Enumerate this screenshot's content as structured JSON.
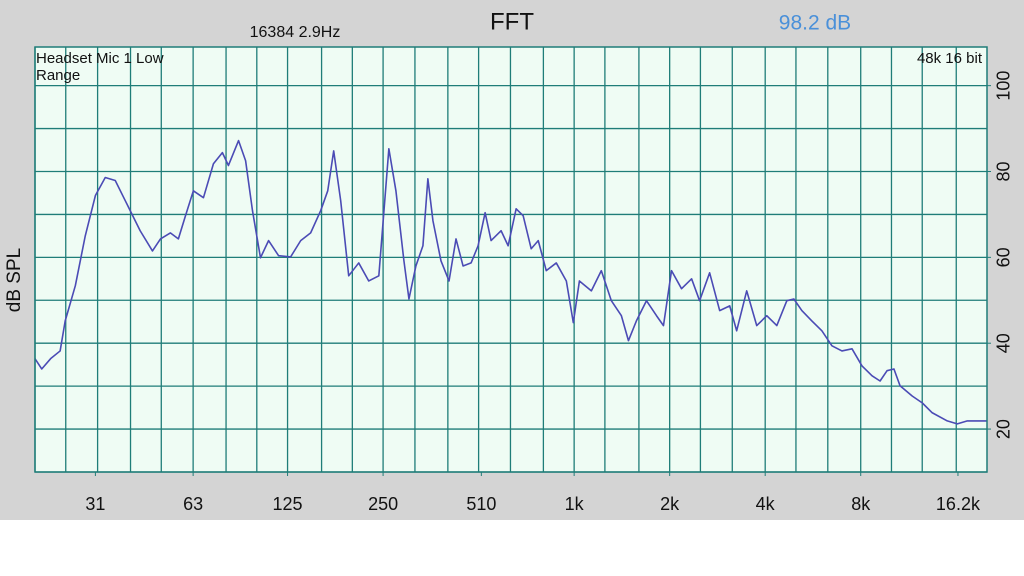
{
  "chart_data": {
    "type": "line",
    "title": "FFT",
    "subtitle": "16384  2.9Hz",
    "readout": "98.2 dB",
    "device_label": "Headset Mic 1 Low Range",
    "format_label": "48k 16 bit",
    "ylabel": "dB SPL",
    "xscale": "log",
    "xlim": [
      20,
      20000
    ],
    "ylim": [
      10,
      109
    ],
    "xticks": [
      31,
      63,
      125,
      250,
      510,
      {
        "value": 1000,
        "label": "1k"
      },
      {
        "value": 2000,
        "label": "2k"
      },
      {
        "value": 4000,
        "label": "4k"
      },
      {
        "value": 8000,
        "label": "8k"
      },
      {
        "value": 16200,
        "label": "16.2k"
      }
    ],
    "x_grid": [
      20,
      25,
      31.5,
      40,
      50,
      63,
      80,
      100,
      125,
      160,
      200,
      250,
      315,
      400,
      500,
      630,
      800,
      1000,
      1250,
      1600,
      2000,
      2500,
      3150,
      4000,
      5000,
      6300,
      8000,
      10000,
      12500,
      16000
    ],
    "yticks": [
      20,
      40,
      60,
      80,
      100
    ],
    "y_grid": [
      10,
      20,
      30,
      40,
      50,
      60,
      70,
      80,
      90,
      100
    ],
    "grid": true,
    "color": "#4b4bb5",
    "x": [
      20,
      21,
      22.4,
      24,
      24.9,
      26.8,
      28.8,
      31,
      33.3,
      35.8,
      38.5,
      42.9,
      46.9,
      49.7,
      53.4,
      56.6,
      59.6,
      63.1,
      67.9,
      73,
      77.9,
      81.4,
      87.6,
      92.2,
      96.9,
      102.7,
      108.9,
      117.1,
      127.8,
      137.5,
      147.8,
      159,
      167.3,
      174.7,
      183.8,
      194.8,
      209.5,
      225.3,
      242.4,
      260.7,
      274.4,
      290.8,
      301.6,
      317.2,
      333.8,
      346,
      359,
      380.5,
      403.4,
      424.4,
      446.6,
      473.4,
      498.1,
      524.2,
      547.4,
      588.6,
      619.4,
      656.5,
      690.8,
      732.3,
      770.7,
      816.9,
      878.5,
      945,
      994,
      1039,
      1133,
      1218,
      1310,
      1409,
      1483,
      1571,
      1690,
      1818,
      1912,
      2027,
      2180,
      2345,
      2485,
      2673,
      2875,
      3092,
      3252,
      3498,
      3762,
      4046,
      4352,
      4680,
      4925,
      5218,
      5612,
      6036,
      6492,
      6982,
      7510,
      8076,
      8686,
      9206,
      9684,
      10180,
      10640,
      11620,
      12500,
      13440,
      14990,
      16120,
      17340,
      18650,
      19950
    ],
    "values": [
      36.4,
      34.0,
      36.4,
      38.2,
      45.2,
      53.4,
      65.0,
      74.4,
      78.6,
      77.9,
      73.2,
      66.2,
      61.5,
      64.3,
      65.7,
      64.3,
      69.7,
      75.5,
      73.9,
      81.8,
      84.4,
      81.4,
      87.2,
      82.5,
      70.9,
      59.9,
      63.9,
      60.4,
      60.1,
      63.9,
      65.7,
      70.9,
      75.5,
      84.8,
      73.2,
      55.7,
      58.7,
      54.5,
      55.7,
      85.3,
      75.5,
      59.2,
      50.3,
      58.0,
      62.7,
      78.3,
      68.5,
      59.2,
      54.5,
      64.3,
      58.0,
      58.7,
      62.7,
      70.4,
      63.9,
      66.2,
      62.7,
      71.3,
      69.7,
      62.0,
      63.9,
      56.9,
      58.7,
      54.5,
      44.8,
      54.5,
      52.2,
      56.9,
      49.9,
      46.4,
      40.6,
      45.2,
      49.9,
      46.4,
      44.1,
      56.9,
      52.7,
      55.0,
      49.9,
      56.4,
      47.6,
      48.7,
      42.9,
      52.2,
      44.1,
      46.4,
      44.1,
      49.9,
      50.3,
      47.6,
      45.2,
      42.9,
      39.4,
      38.2,
      38.7,
      34.7,
      32.4,
      31.2,
      33.6,
      34.0,
      30.1,
      27.7,
      26.1,
      23.8,
      21.9,
      21.2,
      21.9,
      21.9,
      21.9
    ]
  }
}
